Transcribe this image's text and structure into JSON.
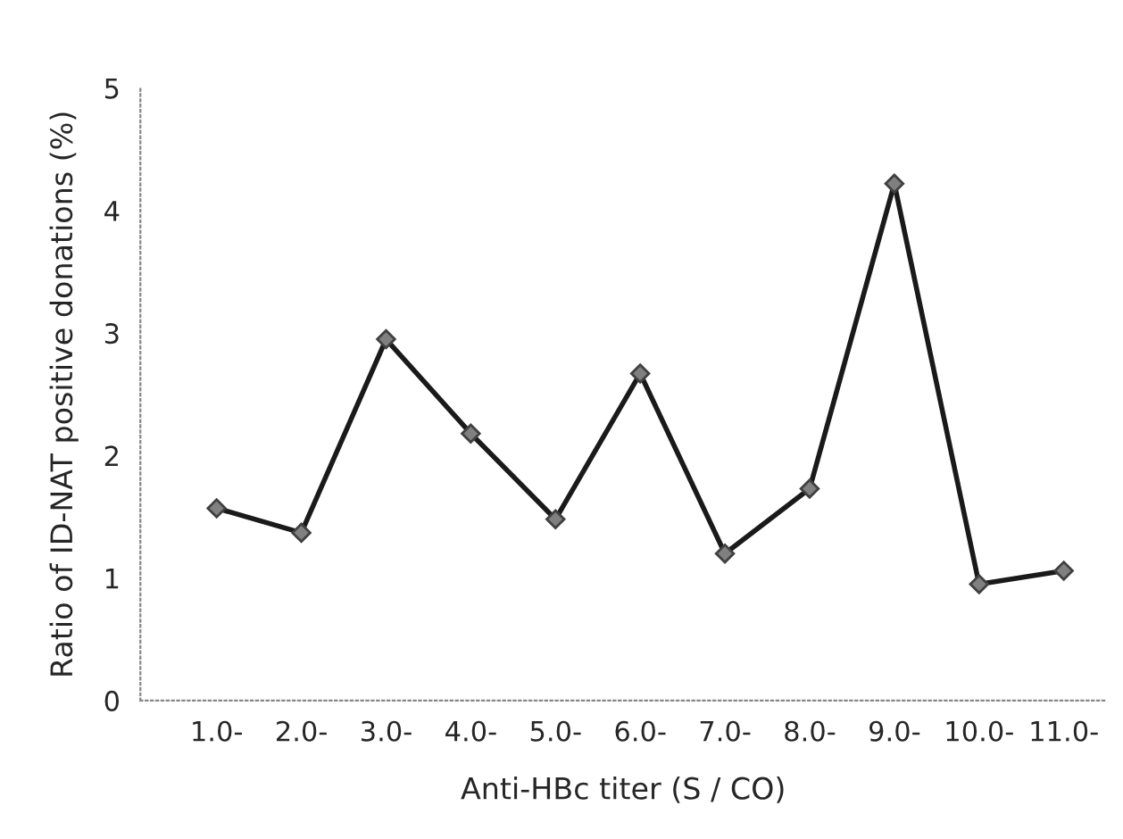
{
  "chart_data": {
    "type": "line",
    "xlabel": "Anti-HBc titer (S / CO)",
    "ylabel": "Ratio of ID-NAT positive donations (%)",
    "categories": [
      "1.0-",
      "2.0-",
      "3.0-",
      "4.0-",
      "5.0-",
      "6.0-",
      "7.0-",
      "8.0-",
      "9.0-",
      "10.0-",
      "11.0-"
    ],
    "series": [
      {
        "color": "#1a1a1a",
        "values": [
          1.57,
          1.37,
          2.95,
          2.18,
          1.48,
          2.67,
          1.2,
          1.73,
          4.22,
          0.95,
          1.06
        ]
      }
    ],
    "ylim": [
      0,
      5
    ],
    "yticks": [
      0,
      1,
      2,
      3,
      4,
      5
    ],
    "marker": "diamond",
    "line_style": "solid",
    "grid": false,
    "legend": false
  }
}
